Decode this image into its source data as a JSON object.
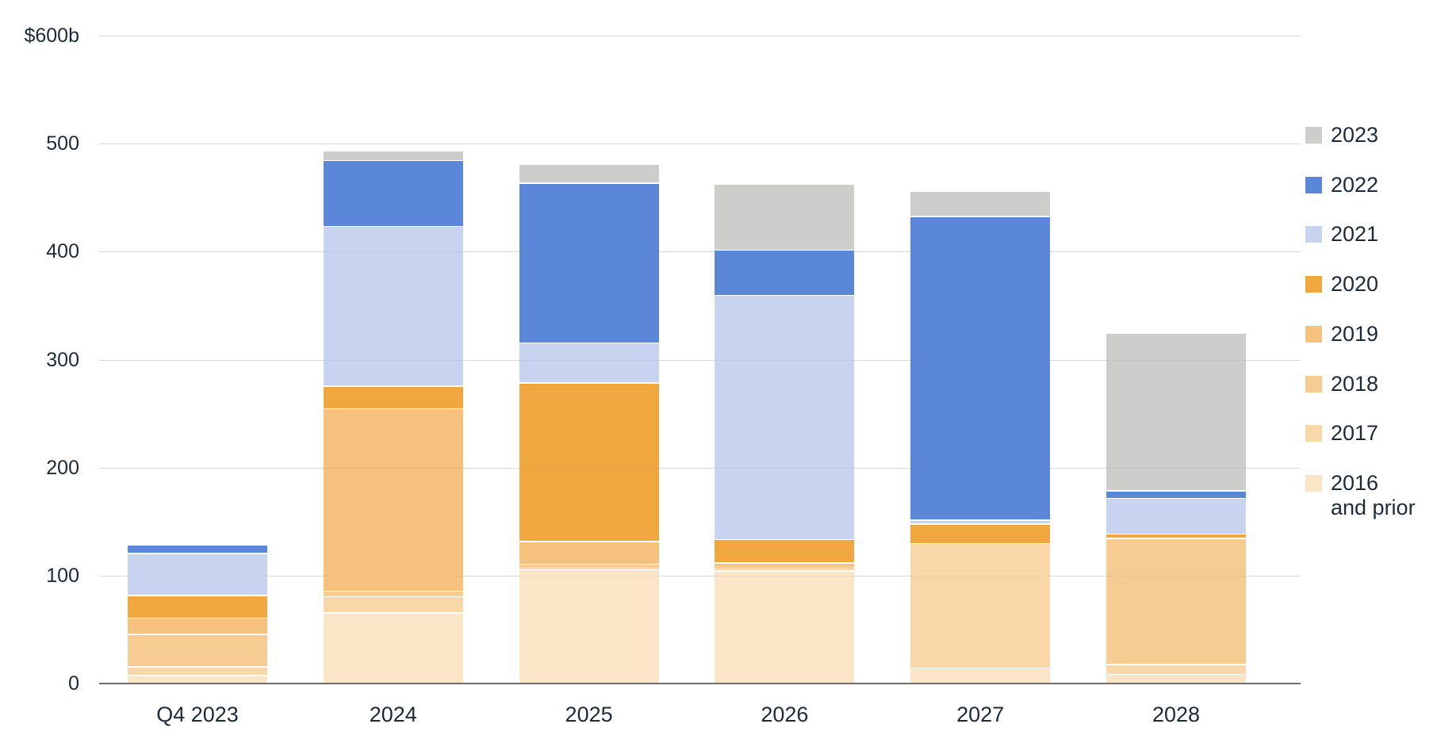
{
  "chart_data": {
    "type": "bar",
    "stacked": true,
    "value_unit": "$ billions",
    "title": "",
    "categories": [
      "Q4 2023",
      "2024",
      "2025",
      "2026",
      "2027",
      "2028"
    ],
    "series": [
      {
        "name": "2016 and prior",
        "color": "#fbe5c7",
        "values": [
          8,
          66,
          106,
          105,
          15,
          9
        ]
      },
      {
        "name": "2017",
        "color": "#f9d7a8",
        "values": [
          8,
          15,
          2,
          2,
          115,
          9
        ]
      },
      {
        "name": "2018",
        "color": "#f7cc92",
        "values": [
          30,
          5,
          3,
          2,
          0,
          117
        ]
      },
      {
        "name": "2019",
        "color": "#f6c17d",
        "values": [
          15,
          169,
          21,
          3,
          0,
          0
        ]
      },
      {
        "name": "2020",
        "color": "#f0a73f",
        "values": [
          21,
          21,
          147,
          22,
          18,
          4
        ]
      },
      {
        "name": "2021",
        "color": "#c7d3ef",
        "values": [
          39,
          148,
          37,
          226,
          4,
          33
        ]
      },
      {
        "name": "2022",
        "color": "#5b87d9",
        "values": [
          7,
          61,
          148,
          42,
          281,
          7
        ]
      },
      {
        "name": "2023",
        "color": "#cdcecb",
        "values": [
          0,
          8,
          16,
          60,
          22,
          145
        ]
      }
    ],
    "totals": [
      128,
      493,
      480,
      462,
      455,
      324
    ],
    "y_axis": {
      "min": 0,
      "max": 600,
      "step": 100,
      "tick_labels": [
        "0",
        "100",
        "200",
        "300",
        "400",
        "500",
        "$600b"
      ]
    },
    "legend": {
      "position": "right",
      "labels_top_to_bottom": [
        "2023",
        "2022",
        "2021",
        "2020",
        "2019",
        "2018",
        "2017",
        "2016\nand prior"
      ]
    },
    "gridlines": true
  }
}
